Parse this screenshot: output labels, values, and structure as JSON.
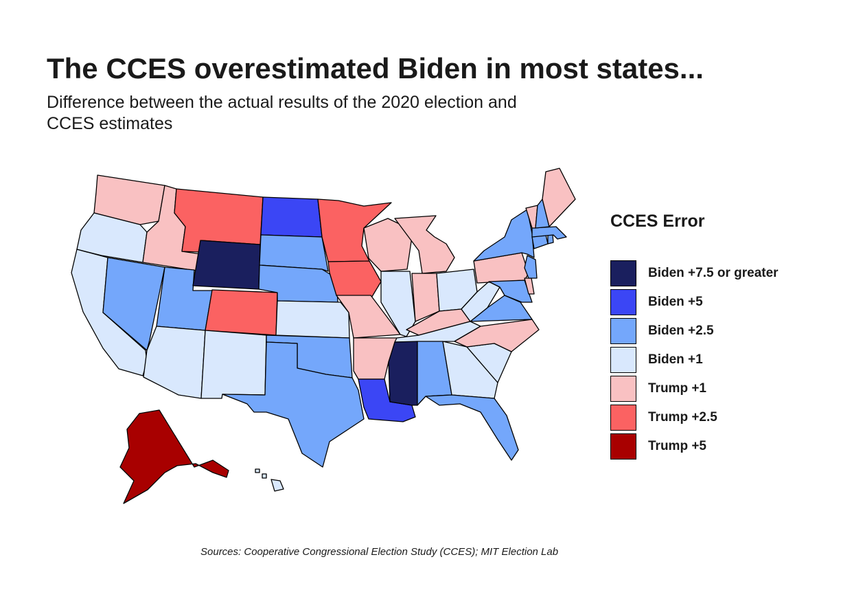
{
  "title": "The CCES overestimated Biden in most states...",
  "subtitle": "Difference between the actual results of the 2020 election and CCES estimates",
  "caption": "Sources: Cooperative Congressional Election Study (CCES); MIT Election Lab",
  "legend": {
    "title": "CCES Error",
    "items": [
      {
        "key": "b75",
        "label": "Biden +7.5 or greater",
        "color": "#1a1f5e"
      },
      {
        "key": "b5",
        "label": "Biden +5",
        "color": "#3b46f5"
      },
      {
        "key": "b25",
        "label": "Biden +2.5",
        "color": "#74a7fb"
      },
      {
        "key": "b1",
        "label": "Biden +1",
        "color": "#d9e8fd"
      },
      {
        "key": "t1",
        "label": "Trump +1",
        "color": "#f9c1c2"
      },
      {
        "key": "t25",
        "label": "Trump +2.5",
        "color": "#fb6262"
      },
      {
        "key": "t5",
        "label": "Trump +5",
        "color": "#a80000"
      }
    ]
  },
  "states": {
    "WA": "t1",
    "OR": "b1",
    "CA": "b1",
    "ID": "t1",
    "NV": "b25",
    "UT": "b25",
    "AZ": "b1",
    "MT": "t25",
    "WY": "b75",
    "CO": "t25",
    "NM": "b1",
    "ND": "b5",
    "SD": "b25",
    "NE": "b25",
    "KS": "b1",
    "OK": "b25",
    "TX": "b25",
    "MN": "t25",
    "IA": "t25",
    "MO": "t1",
    "AR": "t1",
    "LA": "b5",
    "WI": "t1",
    "IL": "b1",
    "MI": "t1",
    "IN": "t1",
    "OH": "b1",
    "KY": "t1",
    "TN": "b1",
    "MS": "b75",
    "AL": "b25",
    "GA": "b1",
    "FL": "b25",
    "SC": "b1",
    "NC": "t1",
    "VA": "b25",
    "WV": "b1",
    "PA": "t1",
    "NY": "b25",
    "NJ": "b25",
    "DE": "t1",
    "MD": "b25",
    "CT": "b25",
    "RI": "b25",
    "MA": "b25",
    "VT": "t1",
    "NH": "b25",
    "ME": "t1",
    "AK": "t5",
    "HI": "b1"
  }
}
